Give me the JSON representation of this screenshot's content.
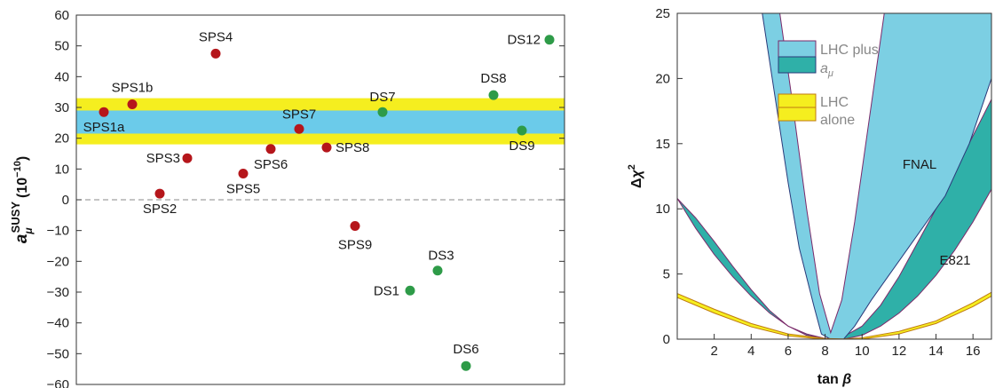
{
  "chart_data": [
    {
      "type": "scatter",
      "ylabel": "a_μ^SUSY (10^−10)",
      "ylim": [
        -60,
        60
      ],
      "yticks": [
        60,
        50,
        40,
        30,
        20,
        10,
        0,
        -10,
        -20,
        -30,
        -40,
        -50,
        -60
      ],
      "bands": [
        {
          "name": "outer",
          "range": [
            18,
            33
          ],
          "color": "#f5ee1f"
        },
        {
          "name": "inner",
          "range": [
            21.5,
            29
          ],
          "color": "#6bcbea"
        }
      ],
      "zero_line": true,
      "series": [
        {
          "color": "#b5161b",
          "points": [
            {
              "label": "SPS1a",
              "x": 1,
              "y": 28.5
            },
            {
              "label": "SPS1b",
              "x": 2,
              "y": 31
            },
            {
              "label": "SPS2",
              "x": 3,
              "y": 2
            },
            {
              "label": "SPS3",
              "x": 4,
              "y": 13.5
            },
            {
              "label": "SPS4",
              "x": 5,
              "y": 47.5
            },
            {
              "label": "SPS5",
              "x": 6,
              "y": 8.5
            },
            {
              "label": "SPS6",
              "x": 7,
              "y": 16.5
            },
            {
              "label": "SPS7",
              "x": 8,
              "y": 23
            },
            {
              "label": "SPS8",
              "x": 9,
              "y": 17
            },
            {
              "label": "SPS9",
              "x": 10,
              "y": -8.5
            }
          ]
        },
        {
          "color": "#2e9b48",
          "points": [
            {
              "label": "DS7",
              "x": 11,
              "y": 28.5
            },
            {
              "label": "DS1",
              "x": 12,
              "y": -29.5
            },
            {
              "label": "DS3",
              "x": 13,
              "y": -23
            },
            {
              "label": "DS6",
              "x": 14,
              "y": -54
            },
            {
              "label": "DS8",
              "x": 15,
              "y": 34
            },
            {
              "label": "DS9",
              "x": 16,
              "y": 22.5
            },
            {
              "label": "DS12",
              "x": 17,
              "y": 52
            }
          ]
        }
      ]
    },
    {
      "type": "area",
      "xlabel": "tan β",
      "ylabel": "Δχ²",
      "xlim": [
        0,
        17
      ],
      "ylim": [
        0,
        25
      ],
      "xticks": [
        2,
        4,
        6,
        8,
        10,
        12,
        14,
        16
      ],
      "yticks": [
        0,
        5,
        10,
        15,
        20,
        25
      ],
      "legend": {
        "placement": "top-left",
        "entries": [
          {
            "label": "LHC plus",
            "sublabel": "a_μ",
            "colors": [
              "#7ccfe3",
              "#2fb0a8"
            ]
          },
          {
            "label": "LHC",
            "sublabel": "alone",
            "colors": [
              "#f5ee1f"
            ]
          }
        ]
      },
      "annotations": [
        "FNAL",
        "E821"
      ],
      "bands": [
        {
          "name": "FNAL",
          "color": "#7ccfe3",
          "upper": [
            [
              5.55,
              25
            ],
            [
              6.2,
              18.5
            ],
            [
              7.0,
              10
            ],
            [
              7.7,
              3.5
            ],
            [
              8.3,
              0.5
            ],
            [
              8.9,
              3
            ],
            [
              9.6,
              9
            ],
            [
              10.4,
              17
            ],
            [
              11.2,
              25
            ]
          ],
          "lower": [
            [
              4.6,
              25
            ],
            [
              5.3,
              18.5
            ],
            [
              6.0,
              12
            ],
            [
              6.6,
              7
            ],
            [
              7.4,
              2.5
            ],
            [
              7.8,
              0.4
            ],
            [
              8.3,
              0
            ],
            [
              9.0,
              0
            ],
            [
              9.6,
              1
            ],
            [
              10.5,
              3
            ],
            [
              11.5,
              5
            ],
            [
              13.0,
              8
            ],
            [
              14.5,
              11
            ],
            [
              15.8,
              15
            ],
            [
              17.0,
              20
            ],
            [
              17.0,
              25
            ]
          ]
        },
        {
          "name": "E821",
          "color": "#2fb0a8",
          "upper": [
            [
              0,
              10.8
            ],
            [
              1,
              8.5
            ],
            [
              2,
              6.5
            ],
            [
              3,
              4.8
            ],
            [
              4,
              3.3
            ],
            [
              5,
              2.0
            ],
            [
              6,
              1.0
            ],
            [
              7,
              0.4
            ],
            [
              8,
              0.05
            ],
            [
              9,
              0
            ],
            [
              10,
              0.3
            ],
            [
              11,
              1.0
            ],
            [
              12,
              2.0
            ],
            [
              13,
              3.3
            ],
            [
              14,
              4.9
            ],
            [
              15,
              6.8
            ],
            [
              16,
              9.0
            ],
            [
              17,
              11.5
            ]
          ],
          "lower": [
            [
              0,
              10.8
            ],
            [
              1,
              9.3
            ],
            [
              2,
              7.5
            ],
            [
              3,
              5.6
            ],
            [
              4,
              3.8
            ],
            [
              5,
              2.2
            ],
            [
              6,
              1.0
            ],
            [
              7,
              0.3
            ],
            [
              8,
              0.05
            ],
            [
              9,
              0.2
            ],
            [
              10,
              1.0
            ],
            [
              11,
              2.6
            ],
            [
              12,
              4.8
            ],
            [
              13,
              7.4
            ],
            [
              14,
              10.0
            ],
            [
              15,
              12.8
            ],
            [
              16,
              15.6
            ],
            [
              17,
              18.4
            ]
          ]
        },
        {
          "name": "LHC alone",
          "color": "#f5ee1f",
          "upper": [
            [
              0,
              3.5
            ],
            [
              2,
              2.3
            ],
            [
              4,
              1.2
            ],
            [
              6,
              0.4
            ],
            [
              8,
              0.05
            ],
            [
              9,
              0.02
            ],
            [
              10,
              0.1
            ],
            [
              12,
              0.6
            ],
            [
              14,
              1.4
            ],
            [
              16,
              2.8
            ],
            [
              17,
              3.6
            ]
          ],
          "lower": [
            [
              0,
              3.2
            ],
            [
              2,
              2.0
            ],
            [
              4,
              0.95
            ],
            [
              6,
              0.25
            ],
            [
              8,
              -0.02
            ],
            [
              9,
              -0.05
            ],
            [
              10,
              0.0
            ],
            [
              12,
              0.4
            ],
            [
              14,
              1.2
            ],
            [
              16,
              2.5
            ],
            [
              17,
              3.3
            ]
          ]
        }
      ]
    }
  ]
}
